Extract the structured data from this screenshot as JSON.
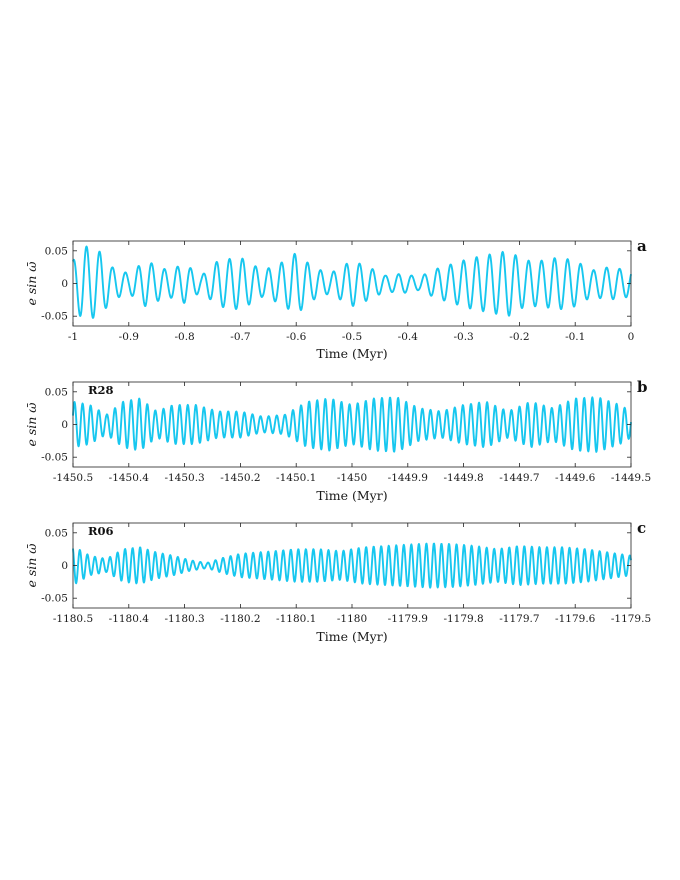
{
  "chart_data": [
    {
      "type": "line",
      "panel_label": "a",
      "inset_label": "",
      "xlabel": "Time (Myr)",
      "ylabel": "e sin ω̄",
      "xlim": [
        -1,
        0
      ],
      "ylim": [
        -0.065,
        0.065
      ],
      "xticks": [
        -1,
        -0.9,
        -0.8,
        -0.7,
        -0.6,
        -0.5,
        -0.4,
        -0.3,
        -0.2,
        -0.1,
        0
      ],
      "xtick_labels": [
        "-1",
        "-0.9",
        "-0.8",
        "-0.7",
        "-0.6",
        "-0.5",
        "-0.4",
        "-0.3",
        "-0.2",
        "-0.1",
        "0"
      ],
      "yticks": [
        -0.05,
        0,
        0.05
      ],
      "ytick_labels": [
        "-0.05",
        "0",
        "0.05"
      ],
      "line_color": "#17c7ef",
      "series": [
        {
          "period": 0.0233,
          "phase": 1.3,
          "envelope": {
            "x": [
              -1,
              -0.98,
              -0.95,
              -0.93,
              -0.9,
              -0.87,
              -0.83,
              -0.8,
              -0.77,
              -0.74,
              -0.7,
              -0.66,
              -0.63,
              -0.6,
              -0.57,
              -0.54,
              -0.5,
              -0.47,
              -0.44,
              -0.41,
              -0.38,
              -0.35,
              -0.32,
              -0.29,
              -0.25,
              -0.22,
              -0.19,
              -0.16,
              -0.13,
              -0.1,
              -0.07,
              -0.04,
              0
            ],
            "y": [
              0.035,
              0.058,
              0.048,
              0.025,
              0.015,
              0.035,
              0.02,
              0.03,
              0.012,
              0.035,
              0.04,
              0.02,
              0.03,
              0.047,
              0.025,
              0.015,
              0.035,
              0.025,
              0.012,
              0.015,
              0.01,
              0.022,
              0.03,
              0.038,
              0.045,
              0.05,
              0.035,
              0.035,
              0.04,
              0.035,
              0.02,
              0.025,
              0.02
            ]
          }
        }
      ]
    },
    {
      "type": "line",
      "panel_label": "b",
      "inset_label": "R28",
      "xlabel": "Time (Myr)",
      "ylabel": "e sin ω̄",
      "xlim": [
        -1450.5,
        -1449.5
      ],
      "ylim": [
        -0.065,
        0.065
      ],
      "xticks": [
        -1450.5,
        -1450.4,
        -1450.3,
        -1450.2,
        -1450.1,
        -1450,
        -1449.9,
        -1449.8,
        -1449.7,
        -1449.6,
        -1449.5
      ],
      "xtick_labels": [
        "-1450.5",
        "-1450.4",
        "-1450.3",
        "-1450.2",
        "-1450.1",
        "-1450",
        "-1449.9",
        "-1449.8",
        "-1449.7",
        "-1449.6",
        "-1449.5"
      ],
      "yticks": [
        -0.05,
        0,
        0.05
      ],
      "ytick_labels": [
        "-0.05",
        "0",
        "0.05"
      ],
      "line_color": "#17c7ef",
      "series": [
        {
          "period": 0.0145,
          "phase": 0.4,
          "envelope": {
            "x": [
              -1450.5,
              -1450.47,
              -1450.44,
              -1450.41,
              -1450.38,
              -1450.35,
              -1450.32,
              -1450.28,
              -1450.24,
              -1450.2,
              -1450.16,
              -1450.12,
              -1450.08,
              -1450.04,
              -1450.0,
              -1449.96,
              -1449.92,
              -1449.88,
              -1449.84,
              -1449.8,
              -1449.76,
              -1449.72,
              -1449.68,
              -1449.64,
              -1449.6,
              -1449.56,
              -1449.52,
              -1449.5
            ],
            "y": [
              0.035,
              0.03,
              0.015,
              0.035,
              0.04,
              0.02,
              0.03,
              0.03,
              0.02,
              0.02,
              0.012,
              0.015,
              0.035,
              0.04,
              0.03,
              0.04,
              0.042,
              0.025,
              0.02,
              0.03,
              0.035,
              0.02,
              0.035,
              0.025,
              0.04,
              0.042,
              0.03,
              0.02
            ]
          }
        }
      ]
    },
    {
      "type": "line",
      "panel_label": "c",
      "inset_label": "R06",
      "xlabel": "Time (Myr)",
      "ylabel": "e sin ω̄",
      "xlim": [
        -1180.5,
        -1179.5
      ],
      "ylim": [
        -0.065,
        0.065
      ],
      "xticks": [
        -1180.5,
        -1180.4,
        -1180.3,
        -1180.2,
        -1180.1,
        -1180,
        -1179.9,
        -1179.8,
        -1179.7,
        -1179.6,
        -1179.5
      ],
      "xtick_labels": [
        "-1180.5",
        "-1180.4",
        "-1180.3",
        "-1180.2",
        "-1180.1",
        "-1180",
        "-1179.9",
        "-1179.8",
        "-1179.7",
        "-1179.6",
        "-1179.5"
      ],
      "yticks": [
        -0.05,
        0,
        0.05
      ],
      "ytick_labels": [
        "-0.05",
        "0",
        "0.05"
      ],
      "line_color": "#17c7ef",
      "series": [
        {
          "period": 0.0135,
          "phase": 2.1,
          "envelope": {
            "x": [
              -1180.5,
              -1180.47,
              -1180.44,
              -1180.41,
              -1180.38,
              -1180.35,
              -1180.32,
              -1180.29,
              -1180.26,
              -1180.23,
              -1180.2,
              -1180.17,
              -1180.14,
              -1180.1,
              -1180.06,
              -1180.02,
              -1179.98,
              -1179.94,
              -1179.9,
              -1179.86,
              -1179.82,
              -1179.78,
              -1179.74,
              -1179.7,
              -1179.66,
              -1179.62,
              -1179.58,
              -1179.54,
              -1179.5
            ],
            "y": [
              0.03,
              0.015,
              0.01,
              0.025,
              0.028,
              0.02,
              0.015,
              0.008,
              0.004,
              0.012,
              0.018,
              0.02,
              0.022,
              0.025,
              0.025,
              0.022,
              0.028,
              0.03,
              0.032,
              0.034,
              0.033,
              0.03,
              0.025,
              0.03,
              0.028,
              0.028,
              0.025,
              0.02,
              0.015
            ]
          }
        }
      ]
    }
  ]
}
